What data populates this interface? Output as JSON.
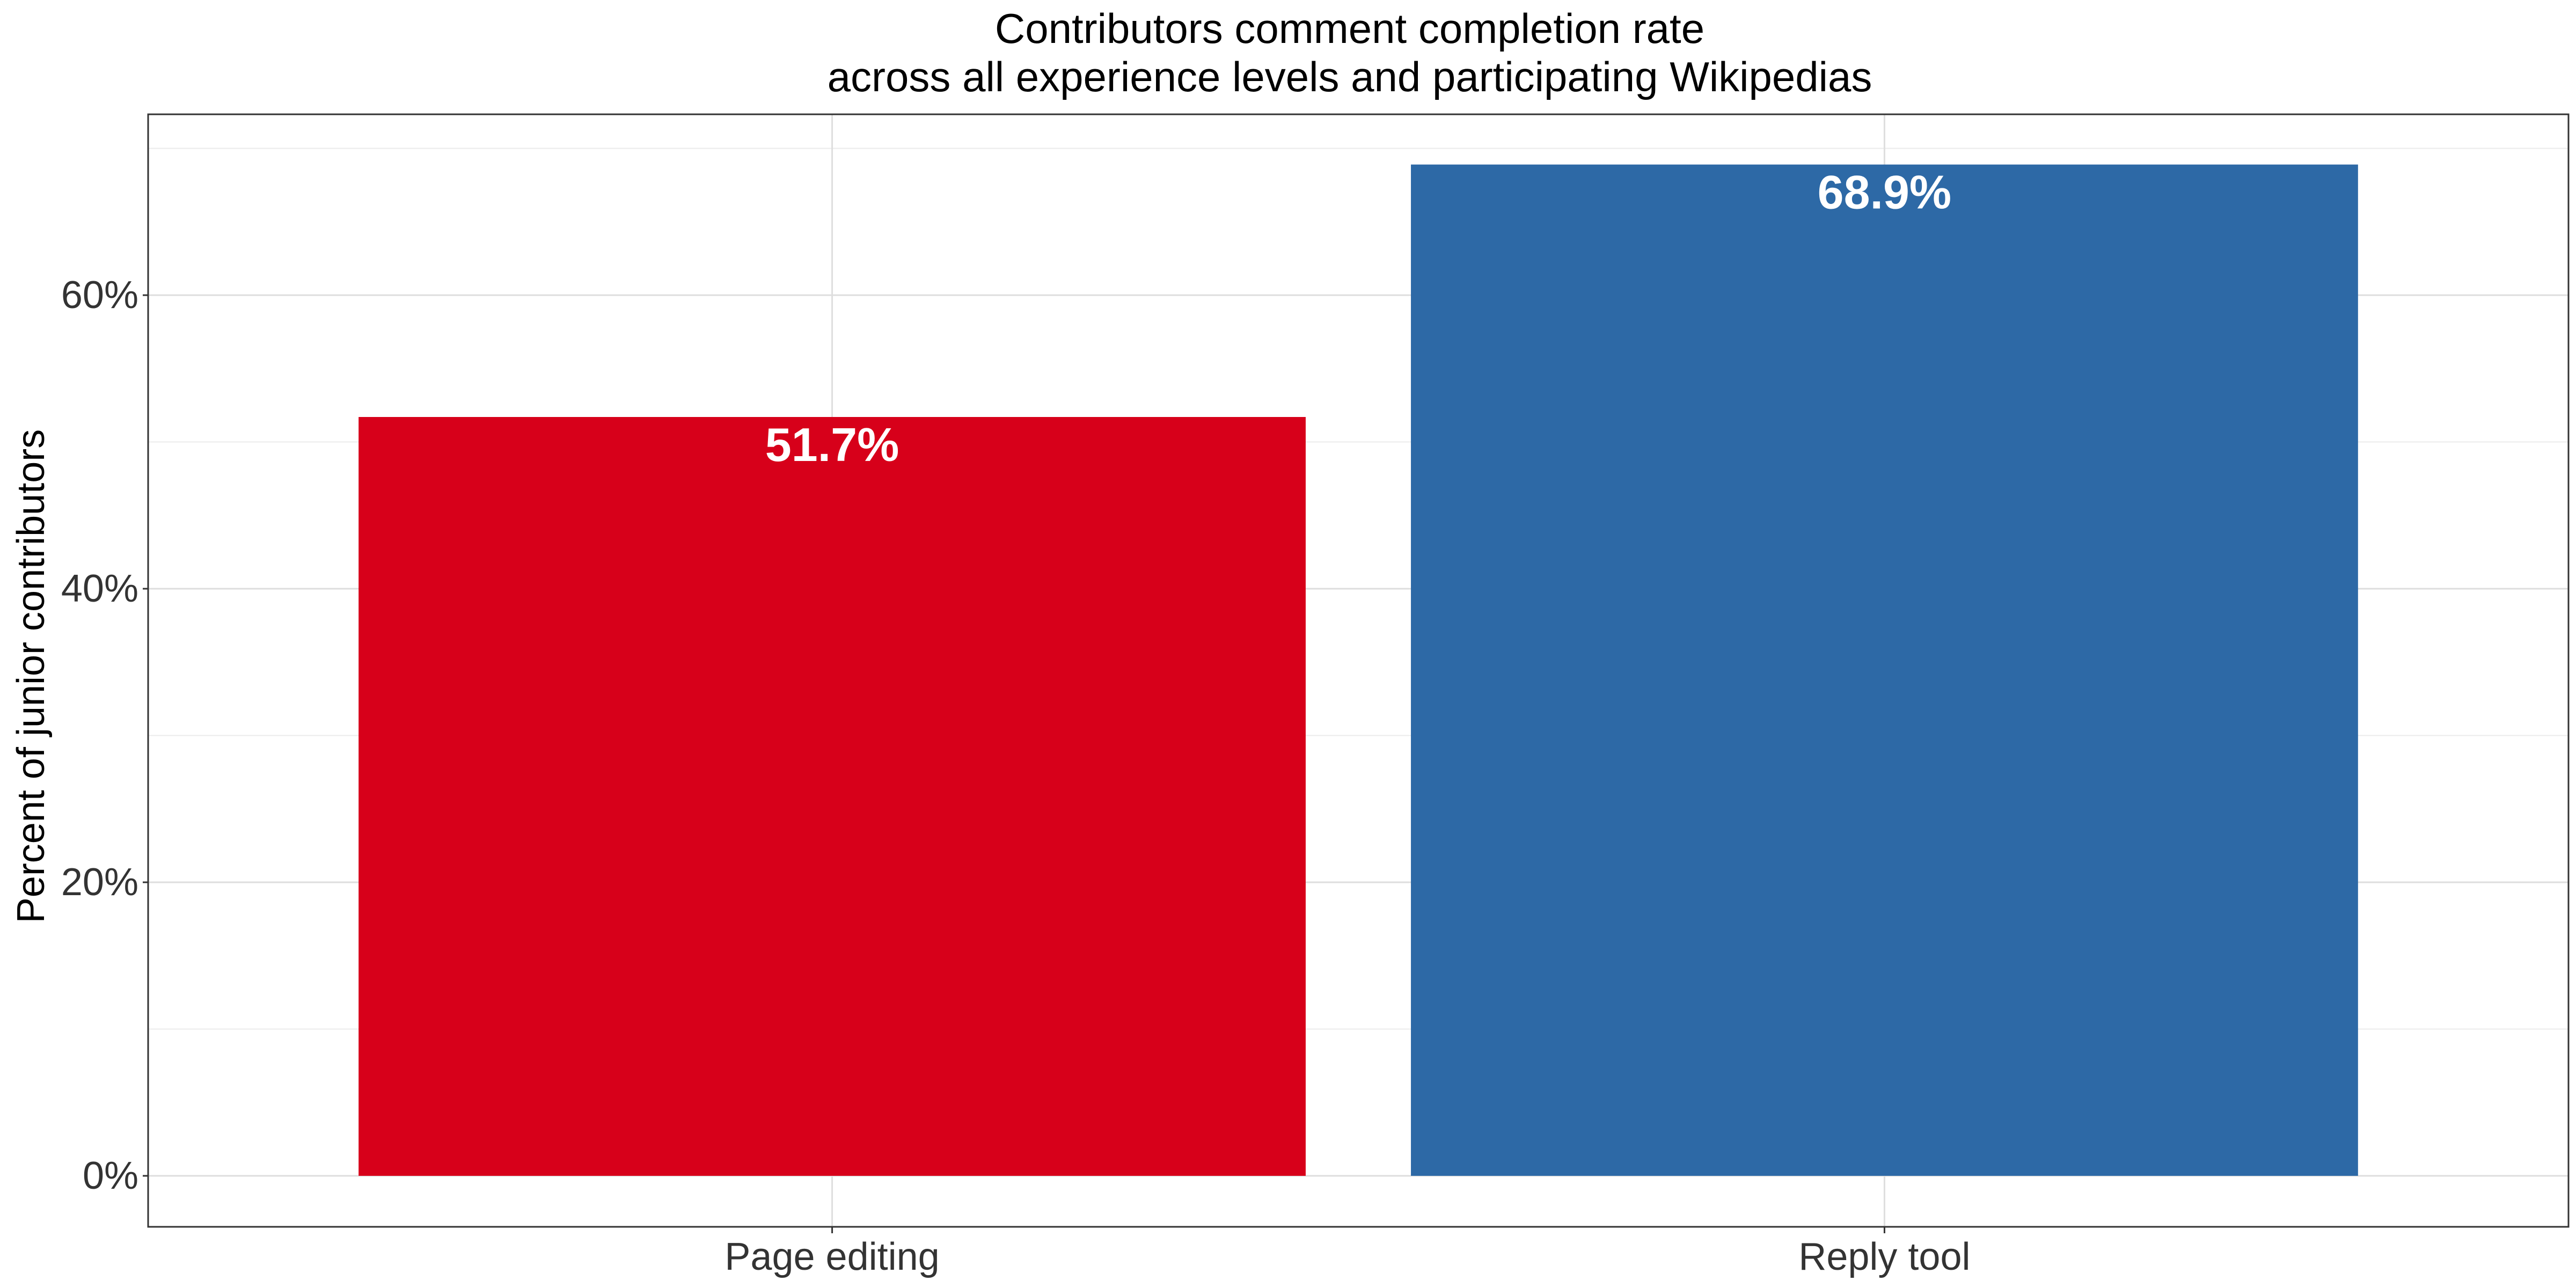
{
  "chart_data": {
    "type": "bar",
    "title": "Contributors comment completion rate",
    "subtitle": "across all experience levels and participating Wikipedias",
    "xlabel": "",
    "ylabel": "Percent of junior contributors",
    "categories": [
      "Page editing",
      "Reply tool"
    ],
    "values": [
      51.7,
      68.9
    ],
    "data_labels": [
      "51.7%",
      "68.9%"
    ],
    "colors": [
      "#D7001A",
      "#2D69A6"
    ],
    "ylim": [
      0,
      72
    ],
    "yticks": [
      0,
      20,
      40,
      60
    ],
    "ytick_labels": [
      "0%",
      "20%",
      "40%",
      "60%"
    ],
    "grid": true,
    "legend": "none"
  }
}
